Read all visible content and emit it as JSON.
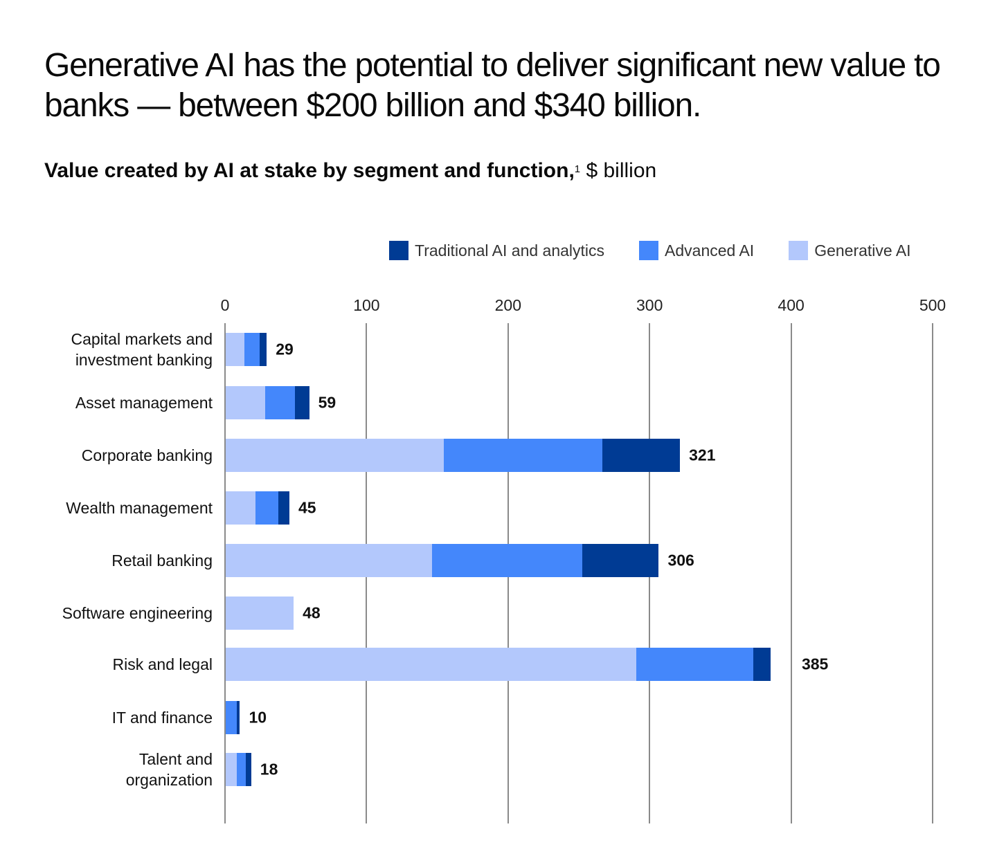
{
  "header": {
    "title": "Generative AI has the potential to deliver significant new value to banks — between $200 billion and $340 billion.",
    "subtitle_bold": "Value created by AI at stake by segment and function,",
    "subtitle_footnote": "1",
    "subtitle_unit": " $ billion"
  },
  "colors": {
    "traditional": "#003b94",
    "advanced": "#4487fb",
    "generative": "#b3c8fc",
    "gridline": "#8a8a8a"
  },
  "legend": [
    {
      "key": "traditional",
      "label": "Traditional AI and analytics",
      "color": "#003b94"
    },
    {
      "key": "advanced",
      "label": "Advanced AI",
      "color": "#4487fb"
    },
    {
      "key": "generative",
      "label": "Generative AI",
      "color": "#b3c8fc"
    }
  ],
  "axis": {
    "ticks": [
      "0",
      "100",
      "200",
      "300",
      "400",
      "500"
    ]
  },
  "chart_data": {
    "type": "bar",
    "orientation": "horizontal",
    "stacked": true,
    "title": "Generative AI has the potential to deliver significant new value to banks — between $200 billion and $340 billion.",
    "subtitle": "Value created by AI at stake by segment and function,1 $ billion",
    "xlabel": "$ billion",
    "ylabel": "",
    "xlim": [
      0,
      500
    ],
    "xticks": [
      0,
      100,
      200,
      300,
      400,
      500
    ],
    "grid": true,
    "legend_position": "top-right",
    "categories": [
      "Capital markets and investment banking",
      "Asset management",
      "Corporate banking",
      "Wealth management",
      "Retail banking",
      "Software engineering",
      "Risk and legal",
      "IT and finance",
      "Talent and organization"
    ],
    "series": [
      {
        "name": "Generative AI",
        "color": "#b3c8fc",
        "values": [
          13,
          28,
          154,
          21,
          146,
          48,
          290,
          0,
          8
        ]
      },
      {
        "name": "Advanced AI",
        "color": "#4487fb",
        "values": [
          11,
          21,
          112,
          16,
          106,
          0,
          83,
          8,
          6
        ]
      },
      {
        "name": "Traditional AI and analytics",
        "color": "#003b94",
        "values": [
          5,
          10,
          55,
          8,
          54,
          0,
          12,
          2,
          4
        ]
      }
    ],
    "totals": [
      29,
      59,
      321,
      45,
      306,
      48,
      385,
      10,
      18
    ],
    "total_labels": [
      "29",
      "59",
      "321",
      "45",
      "306",
      "48",
      "385",
      "10",
      "18"
    ]
  },
  "rows": [
    {
      "label_line1": "Capital markets and",
      "label_line2": "investment banking",
      "total": "29"
    },
    {
      "label_line1": "Asset management",
      "label_line2": "",
      "total": "59"
    },
    {
      "label_line1": "Corporate banking",
      "label_line2": "",
      "total": "321"
    },
    {
      "label_line1": "Wealth management",
      "label_line2": "",
      "total": "45"
    },
    {
      "label_line1": "Retail banking",
      "label_line2": "",
      "total": "306"
    },
    {
      "label_line1": "Software engineering",
      "label_line2": "",
      "total": "48"
    },
    {
      "label_line1": "Risk and legal",
      "label_line2": "",
      "total": "385"
    },
    {
      "label_line1": "IT and finance",
      "label_line2": "",
      "total": "10"
    },
    {
      "label_line1": "Talent and",
      "label_line2": "organization",
      "total": "18"
    }
  ]
}
